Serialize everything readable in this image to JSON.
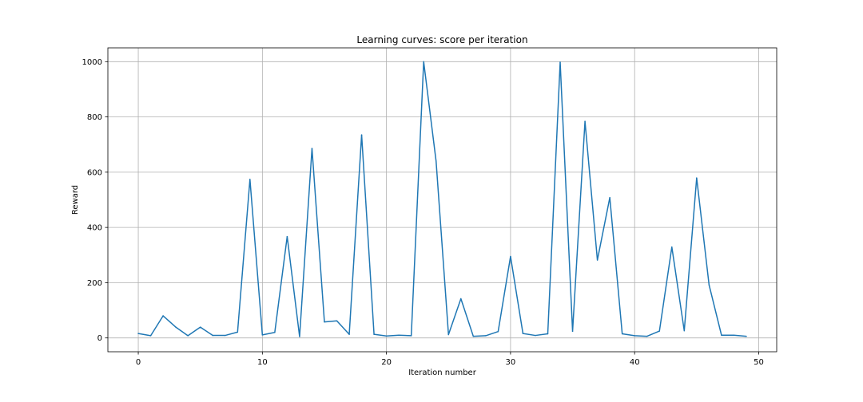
{
  "chart_data": {
    "type": "line",
    "title": "Learning curves: score per iteration",
    "xlabel": "Iteration number",
    "ylabel": "Reward",
    "xlim": [
      -2.45,
      51.45
    ],
    "ylim": [
      -50,
      1050
    ],
    "xticks": [
      0,
      10,
      20,
      30,
      40,
      50
    ],
    "yticks": [
      0,
      200,
      400,
      600,
      800,
      1000
    ],
    "grid": true,
    "line_color": "#1f77b4",
    "series": [
      {
        "x": [
          0,
          1,
          2,
          3,
          4,
          5,
          6,
          7,
          8,
          9,
          10,
          11,
          12,
          13,
          14,
          15,
          16,
          17,
          18,
          19,
          20,
          21,
          22,
          23,
          24,
          25,
          26,
          27,
          28,
          29,
          30,
          31,
          32,
          33,
          34,
          35,
          36,
          37,
          38,
          39,
          40,
          41,
          42,
          43,
          44,
          45,
          46,
          47,
          48,
          49
        ],
        "values": [
          16,
          8,
          80,
          40,
          8,
          39,
          9,
          9,
          21,
          574,
          11,
          20,
          367,
          5,
          686,
          58,
          62,
          13,
          735,
          13,
          7,
          10,
          8,
          1000,
          640,
          12,
          142,
          6,
          8,
          23,
          295,
          16,
          9,
          15,
          998,
          24,
          784,
          282,
          508,
          15,
          8,
          6,
          25,
          329,
          26,
          579,
          192,
          10,
          10,
          6
        ]
      }
    ]
  }
}
